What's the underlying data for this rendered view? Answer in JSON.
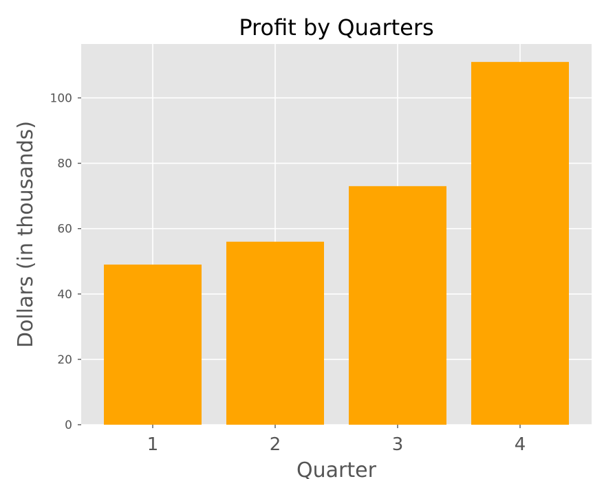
{
  "chart_data": {
    "type": "bar",
    "title": "Profit by Quarters",
    "xlabel": "Quarter",
    "ylabel": "Dollars (in thousands)",
    "categories": [
      "1",
      "2",
      "3",
      "4"
    ],
    "values": [
      49,
      56,
      73,
      111
    ],
    "ylim": [
      0,
      116.5
    ],
    "yticks": [
      0,
      20,
      40,
      60,
      80,
      100
    ],
    "ytick_labels": [
      "0",
      "20",
      "40",
      "60",
      "80",
      "100"
    ],
    "grid": true,
    "bar_color": "#FFA500",
    "plot_background": "#E5E5E5",
    "grid_color": "#FFFFFF"
  }
}
